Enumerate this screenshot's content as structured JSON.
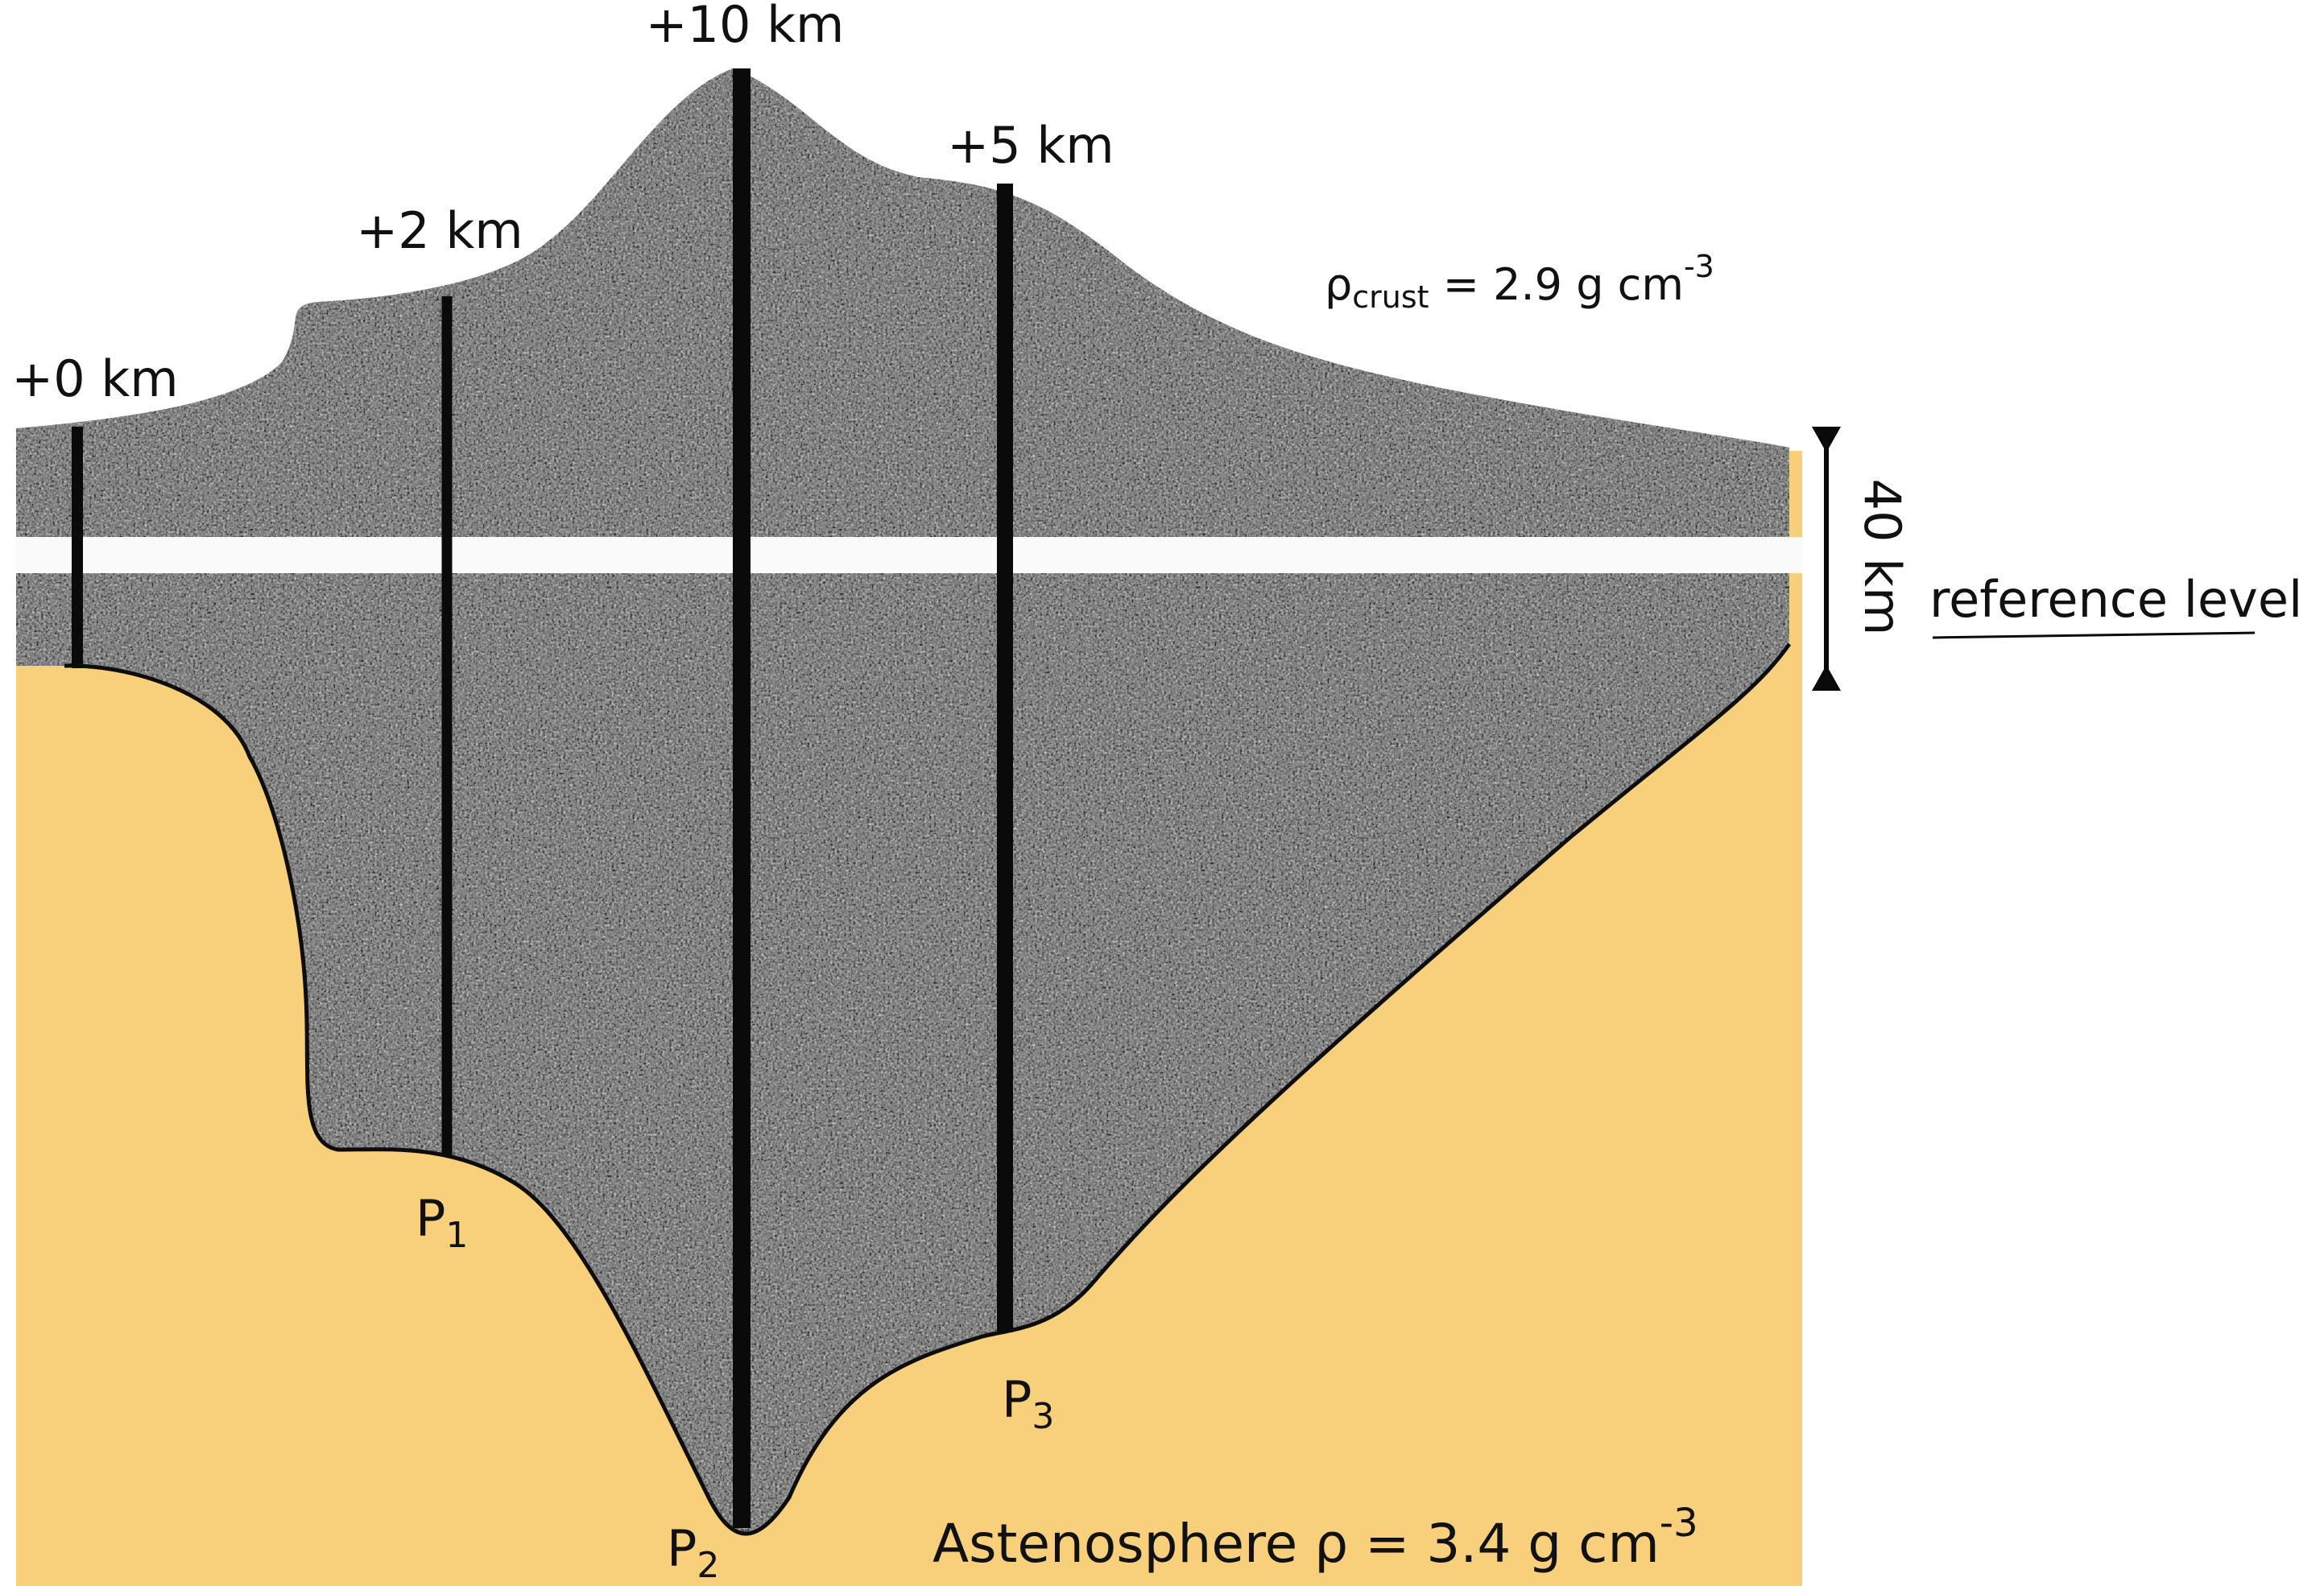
{
  "colors": {
    "asthenosphere": "#f8d07c",
    "crust": "#62625f",
    "reference_band": "#fafafa",
    "column": "#0a0a0a",
    "outline": "#0d0d0d"
  },
  "elevations": {
    "col0": "+0 km",
    "col1": "+2 km",
    "col2": "+10 km",
    "col3": "+5 km"
  },
  "crust_label": {
    "rho": "ρ",
    "sub": "crust",
    "rest": " = 2.9 g cm",
    "exp": "-3"
  },
  "thickness": "40 km",
  "reference_level": "reference level",
  "pressure_points": {
    "p1": {
      "base": "P",
      "sub": "1"
    },
    "p2": {
      "base": "P",
      "sub": "2"
    },
    "p3": {
      "base": "P",
      "sub": "3"
    }
  },
  "asthenosphere_label": {
    "text": "Astenosphere ρ = 3.4 g cm",
    "exp": "-3"
  },
  "icons": [
    "arrowhead-up-icon",
    "arrowhead-down-icon"
  ]
}
